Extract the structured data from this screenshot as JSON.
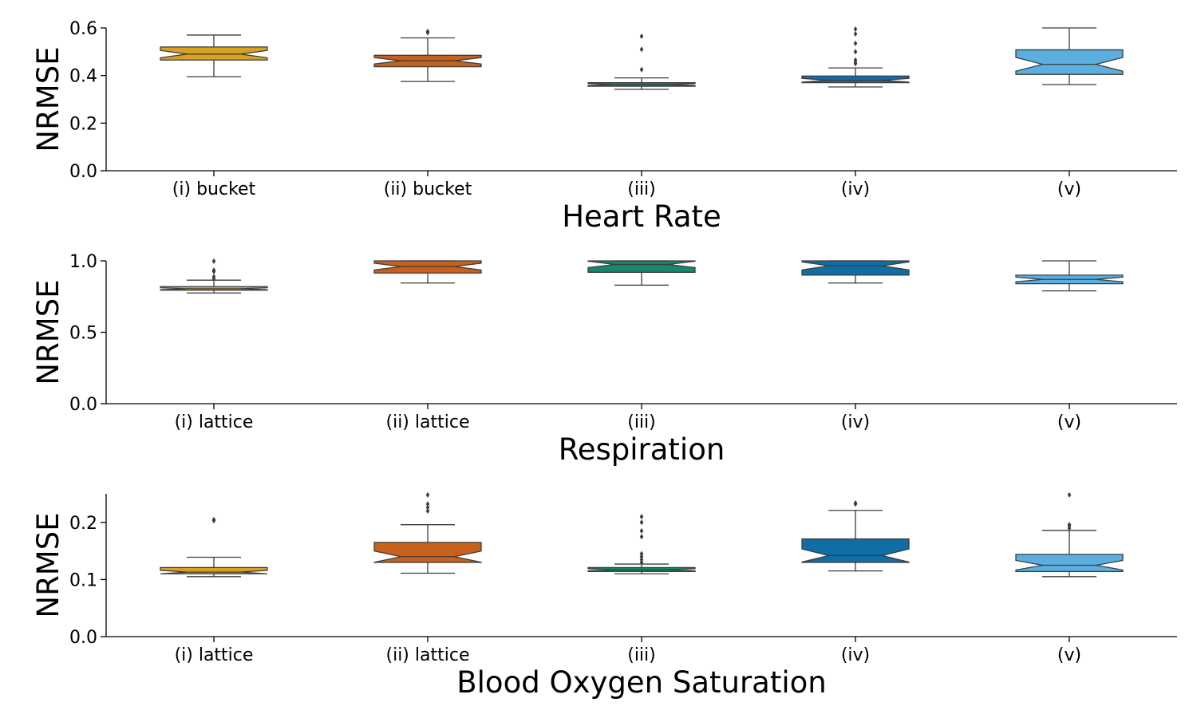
{
  "chart_data": [
    {
      "type": "box",
      "title": "Heart Rate",
      "ylabel": "NRMSE",
      "ylim": [
        0,
        0.6
      ],
      "yticks": [
        "0.0",
        "0.2",
        "0.4",
        "0.6"
      ],
      "categories": [
        "(i) bucket",
        "(ii) bucket",
        "(iii)",
        "(iv)",
        "(v)"
      ],
      "colors": [
        "#d8a11f",
        "#c8611b",
        "#15886a",
        "#0f6ea3",
        "#5aafe0"
      ],
      "notched": true,
      "boxes": [
        {
          "whislo": 0.395,
          "q1": 0.465,
          "med": 0.49,
          "q3": 0.52,
          "whishi": 0.57,
          "fliers": []
        },
        {
          "whislo": 0.375,
          "q1": 0.437,
          "med": 0.462,
          "q3": 0.485,
          "whishi": 0.558,
          "fliers": [
            0.58,
            0.585
          ]
        },
        {
          "whislo": 0.342,
          "q1": 0.355,
          "med": 0.362,
          "q3": 0.37,
          "whishi": 0.39,
          "fliers": [
            0.425,
            0.51,
            0.565
          ]
        },
        {
          "whislo": 0.352,
          "q1": 0.37,
          "med": 0.38,
          "q3": 0.398,
          "whishi": 0.432,
          "fliers": [
            0.45,
            0.455,
            0.465,
            0.5,
            0.535,
            0.575,
            0.595
          ]
        },
        {
          "whislo": 0.362,
          "q1": 0.405,
          "med": 0.447,
          "q3": 0.508,
          "whishi": 0.6,
          "fliers": []
        }
      ]
    },
    {
      "type": "box",
      "title": "Respiration",
      "ylabel": "NRMSE",
      "ylim": [
        0,
        1.0
      ],
      "yticks": [
        "0.0",
        "0.5",
        "1.0"
      ],
      "categories": [
        "(i) lattice",
        "(ii) lattice",
        "(iii)",
        "(iv)",
        "(v)"
      ],
      "colors": [
        "#d8a11f",
        "#c8611b",
        "#15886a",
        "#0f6ea3",
        "#5aafe0"
      ],
      "notched": true,
      "boxes": [
        {
          "whislo": 0.775,
          "q1": 0.795,
          "med": 0.805,
          "q3": 0.82,
          "whishi": 0.865,
          "fliers": [
            0.875,
            0.89,
            0.925,
            0.935,
            0.998
          ]
        },
        {
          "whislo": 0.845,
          "q1": 0.915,
          "med": 0.96,
          "q3": 1.0,
          "whishi": 1.0,
          "fliers": []
        },
        {
          "whislo": 0.83,
          "q1": 0.92,
          "med": 0.975,
          "q3": 1.0,
          "whishi": 1.0,
          "fliers": []
        },
        {
          "whislo": 0.845,
          "q1": 0.9,
          "med": 0.965,
          "q3": 1.0,
          "whishi": 1.0,
          "fliers": []
        },
        {
          "whislo": 0.79,
          "q1": 0.84,
          "med": 0.87,
          "q3": 0.9,
          "whishi": 1.0,
          "fliers": []
        }
      ]
    },
    {
      "type": "box",
      "title": "Blood Oxygen Saturation",
      "ylabel": "NRMSE",
      "ylim": [
        0,
        0.25
      ],
      "yticks": [
        "0.0",
        "0.1",
        "0.2"
      ],
      "categories": [
        "(i) lattice",
        "(ii) lattice",
        "(iii)",
        "(iv)",
        "(v)"
      ],
      "colors": [
        "#d8a11f",
        "#c8611b",
        "#15886a",
        "#0f6ea3",
        "#5aafe0"
      ],
      "notched": true,
      "boxes": [
        {
          "whislo": 0.105,
          "q1": 0.11,
          "med": 0.113,
          "q3": 0.121,
          "whishi": 0.139,
          "fliers": [
            0.203,
            0.205
          ]
        },
        {
          "whislo": 0.111,
          "q1": 0.13,
          "med": 0.14,
          "q3": 0.165,
          "whishi": 0.196,
          "fliers": [
            0.22,
            0.226,
            0.232,
            0.248
          ]
        },
        {
          "whislo": 0.11,
          "q1": 0.114,
          "med": 0.117,
          "q3": 0.121,
          "whishi": 0.127,
          "fliers": [
            0.13,
            0.135,
            0.14,
            0.145,
            0.175,
            0.185,
            0.2,
            0.21
          ]
        },
        {
          "whislo": 0.115,
          "q1": 0.13,
          "med": 0.142,
          "q3": 0.171,
          "whishi": 0.221,
          "fliers": [
            0.232,
            0.234
          ]
        },
        {
          "whislo": 0.105,
          "q1": 0.114,
          "med": 0.125,
          "q3": 0.144,
          "whishi": 0.186,
          "fliers": [
            0.19,
            0.194,
            0.196,
            0.248
          ]
        }
      ]
    }
  ]
}
